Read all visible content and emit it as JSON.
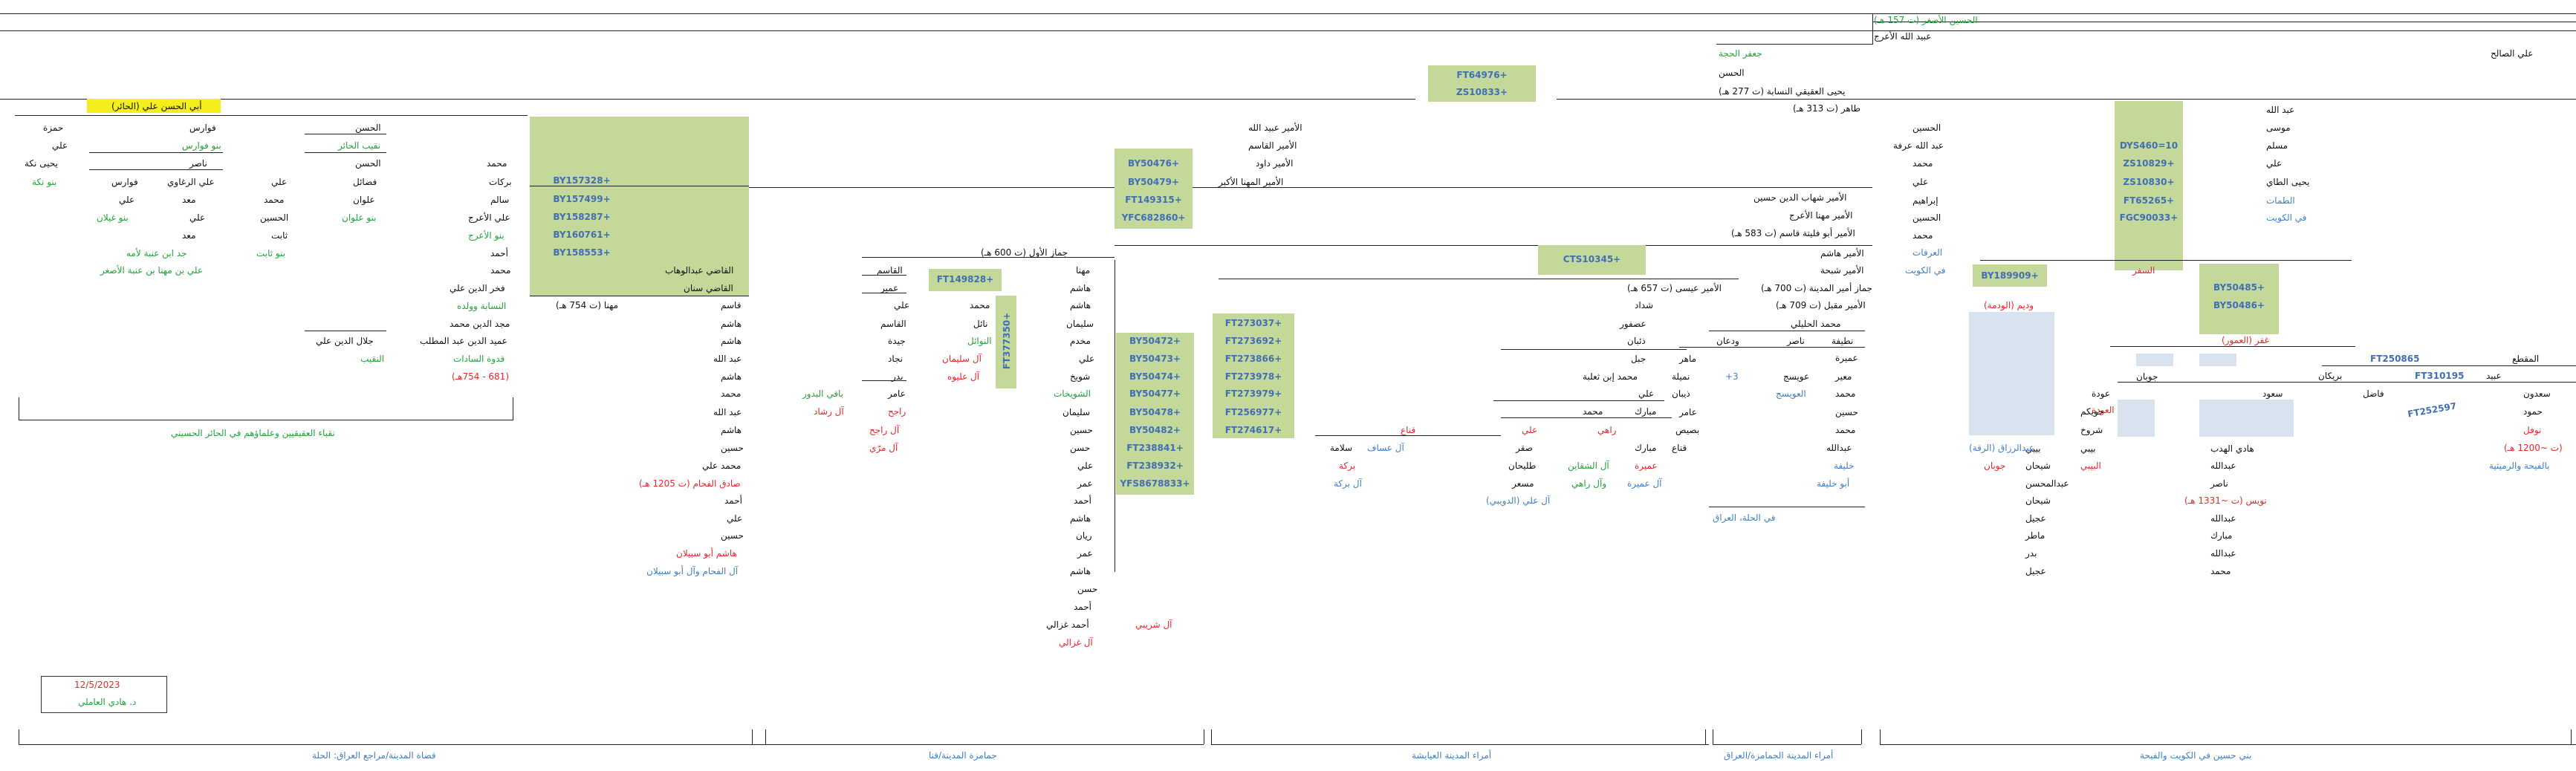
{
  "header": {
    "title": "الحسين الأصغر (ت 157 هـ)",
    "gen1": "عبيد الله الأعرج",
    "gen2": "جعفر الحجة",
    "gen3": "الحسن",
    "gen4": "يحيى العقيقي النسابة (ت 277 هـ)",
    "gen5": "طاهر (ت 313 هـ)",
    "ali_salih": "علي الصالح"
  },
  "top_haplo": [
    "FT64976+",
    "ZS10833+"
  ],
  "kuwait": {
    "names": [
      "عبد الله",
      "موسى",
      "مسلم",
      "علي",
      "يحيى الطاي",
      "الطمات",
      "في الكويت"
    ],
    "haplos": [
      "DYS460=10",
      "ZS10829+",
      "ZS10830+",
      "FT65265+",
      "FGC90033+"
    ],
    "sifr": "السفر",
    "haplos2": [
      "BY50485+",
      "BY50486+"
    ],
    "ghafar": "غفر (العمور)",
    "ft250865": "FT250865",
    "maqtaa": "المقطع",
    "ft310195": "FT310195",
    "ubaid": "عبيد",
    "brikan": "بريكان",
    "jaban": "جوبان",
    "sauud": "سعود",
    "auda": "عودة",
    "auda2": "العودة",
    "huwaikim": "حويكم",
    "sharrookh": "شروخ",
    "bibi": "بيبي",
    "bibi2": "البيبي",
    "ft252597": "FT252597",
    "col_far_right": [
      "سعدون",
      "حمود",
      "نوفل",
      "(ت ~1200 هـ)",
      "بالفيحة والرميثية"
    ],
    "fadhil": "فاضل",
    "col_right": [
      "هادي الهدب",
      "عبدالله",
      "ناصر",
      "نويس (ت ~1331 هـ)",
      "عبدالله",
      "مبارك",
      "عبدالله",
      "محمد"
    ],
    "col_mid": [
      "بيبي",
      "شيحان",
      "عبدالمحسن",
      "شيحان",
      "عجيل",
      "ماطر",
      "بدر",
      "عجيل"
    ],
    "widam": "وديم (الودمة)",
    "by189909": "BY189909+",
    "abdulrazzaq": "عبدالرزاق (الرقة)",
    "jobban": "جوبان"
  },
  "husayn_branch": {
    "names": [
      "الحسين",
      "عبد الله عرفة",
      "محمد",
      "علي",
      "إبراهيم",
      "الحسين",
      "محمد"
    ],
    "arafat": "العرفات",
    "kuwait2": "في الكويت"
  },
  "amir_hashim": {
    "shihab": "الأمير شهاب الدين حسين",
    "muhanna_araj": "الأمير مهنا الأعرج",
    "abu_fulaita": "الأمير أبو فليتة قاسم (ت 583 هـ)",
    "hashim": "الأمير هاشم",
    "shabha": "الأمير شبحة",
    "jammaz": "جماز أمير المدينة (ت 700 هـ)",
    "muqbil": "الأمير مقبل (ت 709 هـ)",
    "hulaili": "محمد الحليلي"
  },
  "hilla": {
    "col1": [
      "نطيفة",
      "عميرة",
      "معير",
      "محمد",
      "حسين",
      "محمد",
      "عبدالله",
      "خليفة",
      "أبو خليفة"
    ],
    "naser": "ناصر",
    "wadhan": "ودعان",
    "awsij": "عويسج",
    "awsij2": "العويسج",
    "plus3": "+3",
    "hilla": "في الحلة، العراق"
  },
  "madina_emirs": {
    "haplos_top": "CTS10345+",
    "amir_isa": "الأمير عيسى (ت 657 هـ)",
    "shaddad": "شداد",
    "asfour": "عصفور",
    "thiyab": "ذئبان",
    "jabal": "جبل",
    "muhammad_thaalba": "محمد إبن ثعلبة",
    "ali": "علي",
    "muhammad": "محمد",
    "names_r": [
      "ماهر",
      "نميلة",
      "ذيبان",
      "عامر",
      "بصيص",
      "قناع"
    ],
    "mubarak": "مبارك",
    "mubarak2": "مبارك",
    "umayra": "عميرة",
    "umayra2": "آل عميرة",
    "ali_r": "علي",
    "rahi": "راهي",
    "shaqain": "آل الشقاين",
    "al_rahi": "وآل راهي",
    "saqr": "صقر",
    "tulaihan": "طليحان",
    "musaar": "مسعر",
    "al_ali": "آل علي (الدويبي)",
    "qanaa": "قناع",
    "salama": "سلامة",
    "al_assaf": "آل عساف",
    "baraka": "بركة",
    "al_baraka": "آل بركة",
    "haplos": [
      "FT273037+",
      "FT273692+",
      "FT273866+",
      "FT273978+",
      "FT273979+",
      "FT256977+",
      "FT274617+"
    ]
  },
  "amir_upper": {
    "ubaidallah": "الأمير عبيد الله",
    "qasim": "الأمير القاسم",
    "dawud": "الأمير داود",
    "muhanna": "الأمير المهنا الأكبر",
    "haplos": [
      "BY50476+",
      "BY50479+",
      "FT149315+",
      "YFC682860+"
    ]
  },
  "jammaz_awwal": {
    "title": "جماز الأول (ت 600 هـ)",
    "col": [
      "مهنا",
      "هاشم",
      "هاشم",
      "سليمان",
      "مخدم",
      "علي",
      "شويخ",
      "الشويخات",
      "سليمان",
      "حسين",
      "حسن",
      "علي",
      "عمر",
      "أحمد",
      "هاشم",
      "ريان",
      "عمر",
      "هاشم",
      "حسن",
      "أحمد",
      "أحمد غزالي"
    ],
    "ghazali": "آل غزالي",
    "haplos": [
      "BY50472+",
      "BY50473+",
      "BY50474+",
      "BY50477+",
      "BY50478+",
      "BY50482+",
      "FT238841+",
      "FT238932+",
      "YFS8678833+"
    ],
    "al_shuraibi": "آل شريبي",
    "qasim": "القاسم",
    "umair": "عمير",
    "ft149828": "FT149828+",
    "muhammad": "محمد",
    "nail": "نائل",
    "nawail": "النوائل",
    "al_sulaiman": "آل سليمان",
    "al_aliwa": "آل عليوه",
    "ft377350": "FT377350+",
    "col2": [
      "علي",
      "القاسم",
      "جيدة",
      "نجاد",
      "بدر",
      "عامر"
    ],
    "rajih": "راجح",
    "al_rajih": "آل راجح",
    "al_muri": "آل مرّي",
    "baqi": "باقي البدور",
    "rashad": "آل رشاد"
  },
  "qudat": {
    "qadi_abdulwahhab": "القاضي عبدالوهاب",
    "qadi_sinan": "القاضي سنان",
    "muhanna": "مهنا (ت 754 هـ)",
    "col": [
      "قاسم",
      "هاشم",
      "هاشم",
      "عبد الله",
      "هاشم",
      "محمد",
      "عبد الله",
      "هاشم",
      "حسين",
      "محمد علي",
      "صادق الفحام (ت 1205 هـ)",
      "أحمد",
      "علي",
      "حسين",
      "هاشم أبو سبيلان",
      "آل الفحام وآل أبو سبيلان"
    ],
    "haplos": [
      "BY157328+",
      "BY157499+",
      "BY158287+",
      "BY160761+",
      "BY158553+"
    ]
  },
  "hair": {
    "yellow": "أبي الحسن علي (الحائر)",
    "col_right": [
      "محمد",
      "بركات",
      "سالم",
      "علي الأعرج",
      "بنو الأعرج",
      "أحمد",
      "محمد",
      "فخر الدين علي",
      "النسابة وولده",
      "مجد الدين محمد",
      "عميد الدين عبد المطلب",
      "قدوة السادات",
      "(681 - 754هـ)"
    ],
    "col_mid": [
      "الحسن",
      "نقيب الحائر",
      "الحسن",
      "فضائل",
      "علوان",
      "بنو علوان"
    ],
    "col_mid2": [
      "علي",
      "محمد",
      "الحسين",
      "ثابت",
      "بنو ثابت"
    ],
    "jalal": "جلال الدين علي",
    "naqib": "النقيب",
    "fawaris": "فوارس",
    "banu_fawaris": "بنو فوارس",
    "naser": "ناصر",
    "col_l1": [
      "علي الرغاوي",
      "معد",
      "علي",
      "معد",
      "جد ابن عنبة لأمه"
    ],
    "col_l2": [
      "فوارس",
      "علي",
      "بنو غيلان"
    ],
    "col_l3": [
      "حمزة",
      "علي",
      "يحيى نكة",
      "بنو نكة"
    ],
    "anba": "علي بن مهنا بن عنبة الأصغر",
    "caption": "نقباء العقيقيين وعلماؤهم في الحائر الحسيني"
  },
  "footer": {
    "date": "12/5/2023",
    "author": "د. هادي العاملي",
    "labels": [
      "قضاة المدينة/مراجع العراق: الحلة",
      "جمامزة المدينة/قنا",
      "أمراء المدينة العيايشة",
      "أمراء المدينة الجمامزة/العراق",
      "بني حسين في الكويت والفيحة"
    ]
  }
}
